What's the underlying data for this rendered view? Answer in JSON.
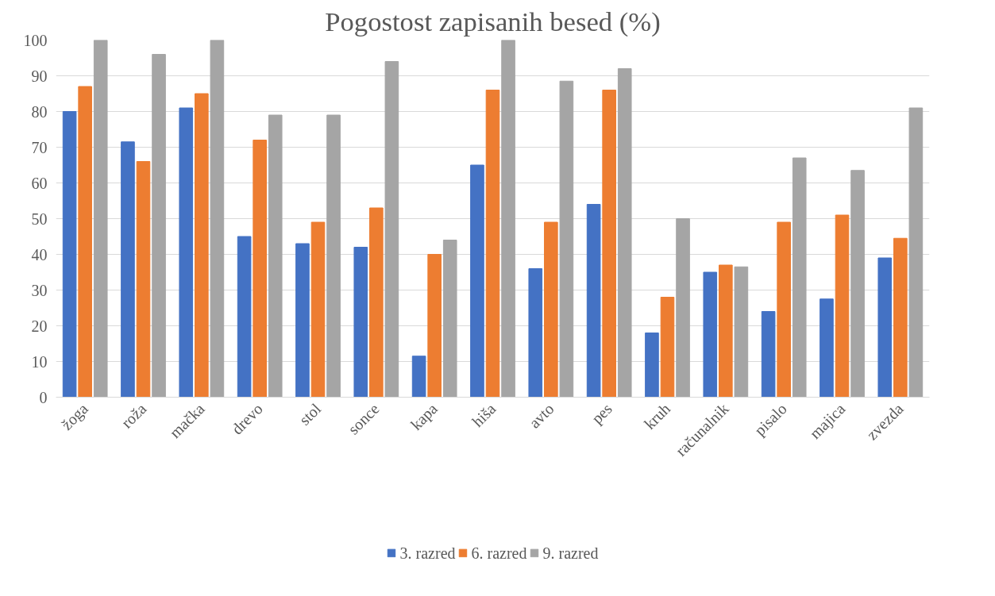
{
  "chart_data": {
    "type": "bar",
    "title": "Pogostost zapisanih besed (%)",
    "categories": [
      "žoga",
      "roža",
      "mačka",
      "drevo",
      "stol",
      "sonce",
      "kapa",
      "hiša",
      "avto",
      "pes",
      "kruh",
      "računalnik",
      "pisalo",
      "majica",
      "zvezda"
    ],
    "series": [
      {
        "name": "3. razred",
        "color": "#4472c4",
        "values": [
          80,
          71.5,
          81,
          45,
          43,
          42,
          11.5,
          65,
          36,
          54,
          18,
          35,
          24,
          27.5,
          39
        ]
      },
      {
        "name": "6. razred",
        "color": "#ed7d31",
        "values": [
          87,
          66,
          85,
          72,
          49,
          53,
          40,
          86,
          49,
          86,
          28,
          37,
          49,
          51,
          44.5
        ]
      },
      {
        "name": "9. razred",
        "color": "#a5a5a5",
        "values": [
          100,
          96,
          100,
          79,
          79,
          94,
          44,
          100,
          88.5,
          92,
          50,
          36.5,
          67,
          63.5,
          81
        ]
      }
    ],
    "ylim": [
      0,
      100
    ],
    "yticks": [
      0,
      10,
      20,
      30,
      40,
      50,
      60,
      70,
      80,
      90,
      100
    ],
    "grid": "y",
    "legend": "bottom"
  }
}
